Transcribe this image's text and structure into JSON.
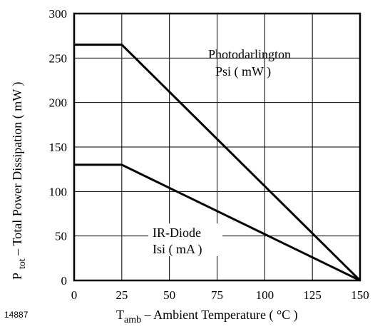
{
  "chart_data": {
    "type": "line",
    "figure_number": "14887",
    "xlabel": {
      "main": "T",
      "sub": "amb",
      "rest": " – Ambient Temperature ( °C )"
    },
    "ylabel": {
      "main": "P",
      "sub": "tot",
      "rest": " – Total Power Dissipation ( mW )"
    },
    "xlim": [
      0,
      150
    ],
    "ylim": [
      0,
      300
    ],
    "xticks": [
      0,
      25,
      50,
      75,
      100,
      125,
      150
    ],
    "yticks": [
      0,
      50,
      100,
      150,
      200,
      250,
      300
    ],
    "grid": true,
    "series": [
      {
        "label_lines": [
          "Photodarlington",
          "Psi ( mW )"
        ],
        "color": "#000000",
        "x": [
          0,
          25,
          150
        ],
        "y": [
          265,
          265,
          0
        ]
      },
      {
        "label_lines": [
          "IR-Diode",
          "Isi ( mA )"
        ],
        "color": "#000000",
        "x": [
          0,
          25,
          150
        ],
        "y": [
          130,
          130,
          0
        ]
      }
    ]
  }
}
